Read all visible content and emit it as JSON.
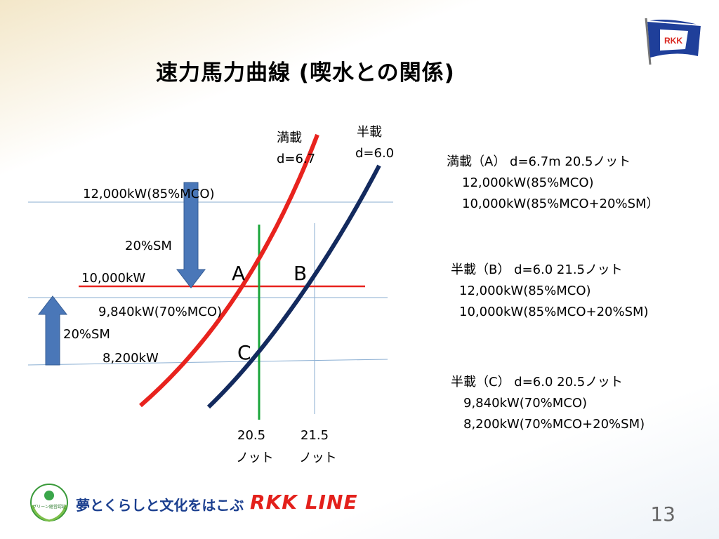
{
  "title": "速力馬力曲線 (喫水との関係)",
  "page_number": "13",
  "curves": {
    "full": {
      "name": "満載",
      "draft": "d=6.7",
      "color": "#e8231e"
    },
    "half": {
      "name": "半載",
      "draft": "d=6.0",
      "color": "#132a5e"
    }
  },
  "power_labels": {
    "p12000": "12,000kW(85%MCO)",
    "sm_top": "20%SM",
    "p10000": "10,000kW",
    "p9840": "9,840kW(70%MCO)",
    "sm_bottom": "20%SM",
    "p8200": "8,200kW"
  },
  "points": {
    "a": "A",
    "b": "B",
    "c": "C"
  },
  "speeds": {
    "s205": {
      "value": "20.5",
      "unit": "ノット"
    },
    "s215": {
      "value": "21.5",
      "unit": "ノット"
    }
  },
  "info": [
    {
      "head": "満載（A） d=6.7m 20.5ノット",
      "line1": "12,000kW(85%MCO)",
      "line2": "10,000kW(85%MCO+20%SM）"
    },
    {
      "head": "半載（B） d=6.0 21.5ノット",
      "line1": "12,000kW(85%MCO)",
      "line2": "10,000kW(85%MCO+20%SM)"
    },
    {
      "head": "半載（C） d=6.0 20.5ノット",
      "line1": "9,840kW(70%MCO)",
      "line2": "8,200kW(70%MCO+20%SM)"
    }
  ],
  "logo": {
    "flag_text": "RKK",
    "badge_text": "グリーン経営認証",
    "slogan": "夢とくらしと文化をはこぶ",
    "brand": "RKK LINE"
  }
}
